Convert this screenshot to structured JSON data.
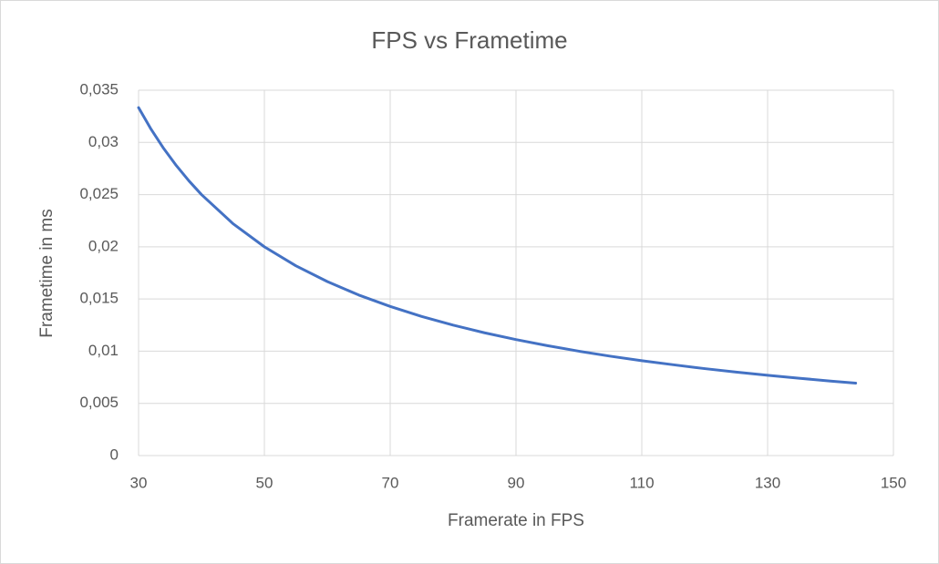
{
  "chart_data": {
    "type": "line",
    "title": "FPS vs Frametime",
    "x_label": "Framerate in FPS",
    "y_label": "Frametime in ms",
    "x": [
      30,
      32,
      34,
      36,
      38,
      40,
      45,
      50,
      55,
      60,
      65,
      70,
      75,
      80,
      85,
      90,
      95,
      100,
      105,
      110,
      115,
      120,
      125,
      130,
      135,
      140,
      144
    ],
    "values": [
      0.03333,
      0.03125,
      0.02941,
      0.02778,
      0.02632,
      0.025,
      0.02222,
      0.02,
      0.01818,
      0.01667,
      0.01538,
      0.01429,
      0.01333,
      0.0125,
      0.01176,
      0.01111,
      0.01053,
      0.01,
      0.00952,
      0.00909,
      0.0087,
      0.00833,
      0.008,
      0.00769,
      0.00741,
      0.00714,
      0.00694
    ],
    "color": "#4472c4",
    "xlim": [
      30,
      150
    ],
    "xticks": [
      30,
      50,
      70,
      90,
      110,
      130,
      150
    ],
    "ylim": [
      0,
      0.035
    ],
    "yticks": [
      0,
      {
        "value": 0.005,
        "label": "0,005"
      },
      {
        "value": 0.01,
        "label": "0,01"
      },
      {
        "value": 0.015,
        "label": "0,015"
      },
      {
        "value": 0.02,
        "label": "0,02"
      },
      {
        "value": 0.025,
        "label": "0,025"
      },
      {
        "value": 0.03,
        "label": "0,03"
      },
      {
        "value": 0.035,
        "label": "0,035"
      }
    ],
    "grid": true
  }
}
